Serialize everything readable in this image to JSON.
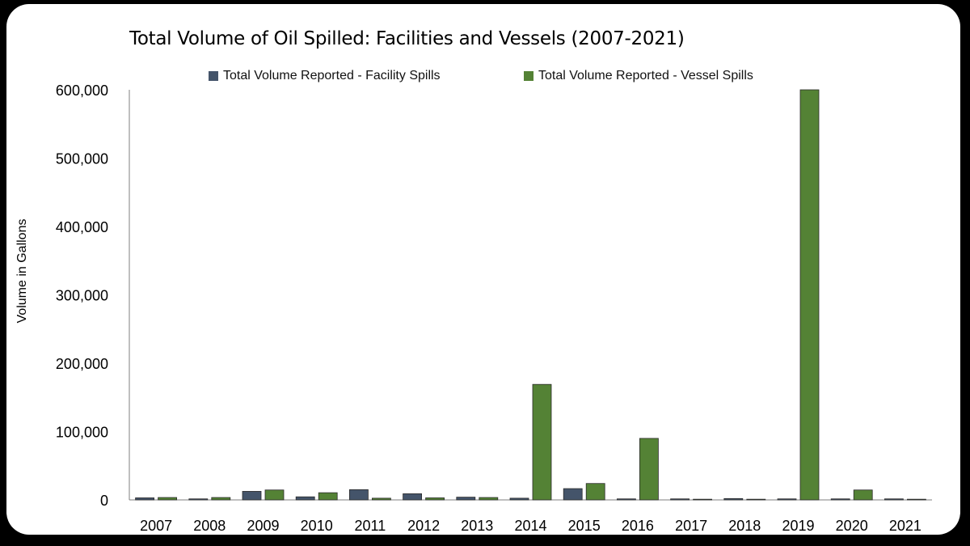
{
  "chart_data": {
    "type": "bar",
    "title": "Total Volume of Oil Spilled: Facilities and Vessels (2007-2021)",
    "ylabel": "Volume in Gallons",
    "xlabel": "",
    "categories": [
      "2007",
      "2008",
      "2009",
      "2010",
      "2011",
      "2012",
      "2013",
      "2014",
      "2015",
      "2016",
      "2017",
      "2018",
      "2019",
      "2020",
      "2021"
    ],
    "series": [
      {
        "name": "Total Volume Reported - Facility Spills",
        "color": "#44546a",
        "values": [
          3000,
          1500,
          12500,
          4500,
          15000,
          9000,
          4000,
          2500,
          16500,
          1500,
          1500,
          2000,
          1500,
          1500,
          1500
        ]
      },
      {
        "name": "Total Volume Reported - Vessel Spills",
        "color": "#548235",
        "values": [
          3500,
          3500,
          14500,
          10500,
          2500,
          3000,
          3500,
          169000,
          24000,
          90000,
          1000,
          1000,
          600000,
          14500,
          1000
        ]
      }
    ],
    "ylim": [
      0,
      600000
    ],
    "yticks": [
      0,
      100000,
      200000,
      300000,
      400000,
      500000,
      600000
    ],
    "ytick_labels": [
      "0",
      "100,000",
      "200,000",
      "300,000",
      "400,000",
      "500,000",
      "600,000"
    ],
    "grid": false,
    "legend_position": "top"
  }
}
